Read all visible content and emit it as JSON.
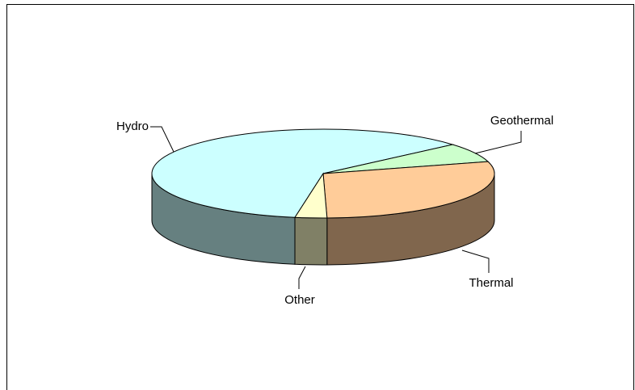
{
  "chart_data": {
    "type": "pie",
    "categories": [
      "Hydro",
      "Geothermal",
      "Thermal",
      "Other"
    ],
    "values": [
      61,
      7,
      29,
      3
    ],
    "colors": [
      "#ccffff",
      "#ccffcc",
      "#ffcc99",
      "#ffffcc"
    ]
  }
}
